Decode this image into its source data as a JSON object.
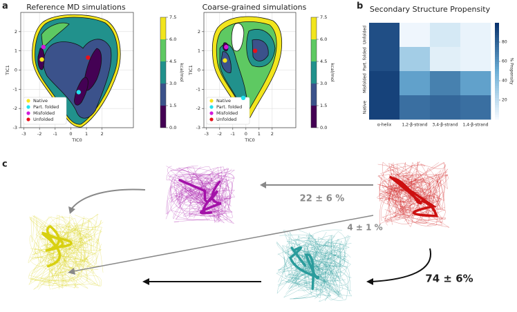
{
  "panel_labels": [
    "a",
    "b",
    "c"
  ],
  "chart_data": [
    {
      "type": "contour",
      "title": "Reference MD simulations",
      "x_label": "TIC0",
      "y_label": "TIC1",
      "xlim": [
        -3.2,
        4
      ],
      "xticks": [
        -3,
        -2,
        -1,
        0,
        1,
        2
      ],
      "ylim": [
        -3,
        3
      ],
      "yticks": [
        -3,
        -2,
        -1,
        0,
        1,
        2
      ],
      "grid": true,
      "legend": "lower left",
      "colorbar": {
        "label": "kcal/mol",
        "lim": [
          0,
          7.5
        ],
        "ticks": [
          {
            "value": 0,
            "label": "0.0"
          },
          1.5,
          {
            "value": 3,
            "label": "3.0"
          },
          4.5,
          {
            "value": 6,
            "label": "6.0"
          },
          7.5
        ],
        "colors": [
          "#440154",
          "#3b528b",
          "#21918c",
          "#5ec962",
          "#f2e51d"
        ]
      },
      "series": [
        {
          "name": "Native",
          "color": "#f5e51b",
          "x": [
            -1.85
          ],
          "values": [
            0.55
          ]
        },
        {
          "name": "Part. folded",
          "color": "#22e1ee",
          "x": [
            0.5
          ],
          "values": [
            -1.15
          ]
        },
        {
          "name": "Misfolded",
          "color": "#d21adb",
          "x": [
            -1.75
          ],
          "values": [
            1.2
          ]
        },
        {
          "name": "Unfolded",
          "color": "#e8101b",
          "x": [
            1.1
          ],
          "values": [
            0.65
          ]
        }
      ]
    },
    {
      "type": "contour",
      "title": "Coarse-grained simulations",
      "x_label": "TIC0",
      "y_label": "TIC1",
      "xlim": [
        -3.2,
        3.8
      ],
      "xticks": [
        -3,
        -2,
        -1,
        0,
        1,
        2
      ],
      "ylim": [
        -3,
        3
      ],
      "yticks": [
        -3,
        -2,
        -1,
        0,
        1,
        2
      ],
      "grid": true,
      "legend": "lower left",
      "colorbar": {
        "label": "kcal/mol",
        "lim": [
          0,
          7.5
        ],
        "ticks": [
          {
            "value": 0,
            "label": "0.0"
          },
          1.5,
          {
            "value": 3,
            "label": "3.0"
          },
          4.5,
          {
            "value": 6,
            "label": "6.0"
          },
          7.5
        ],
        "colors": [
          "#440154",
          "#3b528b",
          "#21918c",
          "#5ec962",
          "#f2e51d"
        ]
      },
      "series": [
        {
          "name": "Native",
          "color": "#f5e51b",
          "x": [
            -1.6
          ],
          "values": [
            0.5
          ]
        },
        {
          "name": "Part. folded",
          "color": "#22e1ee",
          "x": [
            -0.2
          ],
          "values": [
            -1.45
          ]
        },
        {
          "name": "Misfolded",
          "color": "#d21adb",
          "x": [
            -1.5
          ],
          "values": [
            1.2
          ]
        },
        {
          "name": "Unfolded",
          "color": "#e8101b",
          "x": [
            0.7
          ],
          "values": [
            1.0
          ]
        }
      ]
    },
    {
      "type": "heatmap",
      "title": "Secondary Structure Propensity",
      "x_categories": [
        "α-helix",
        "1,2-β-strand",
        "3,4-β-strand",
        "1,4-β-strand"
      ],
      "y_categories": [
        "Unfolded",
        "Part. folded",
        "Misfolded",
        "Native"
      ],
      "values": [
        [
          88,
          3,
          12,
          5
        ],
        [
          88,
          30,
          8,
          5
        ],
        [
          93,
          55,
          68,
          55
        ],
        [
          93,
          75,
          78,
          75
        ]
      ],
      "colormap": [
        "#f7fbff",
        "#6baed6",
        "#08306b"
      ],
      "colorbar": {
        "label": "% Propensity",
        "lim": [
          0,
          100
        ],
        "ticks": [
          20,
          40,
          60,
          80
        ]
      }
    }
  ],
  "panel_c": {
    "transitions": [
      "22 ± 6 %",
      "4 ± 1 %",
      "74 ± 6%"
    ]
  }
}
